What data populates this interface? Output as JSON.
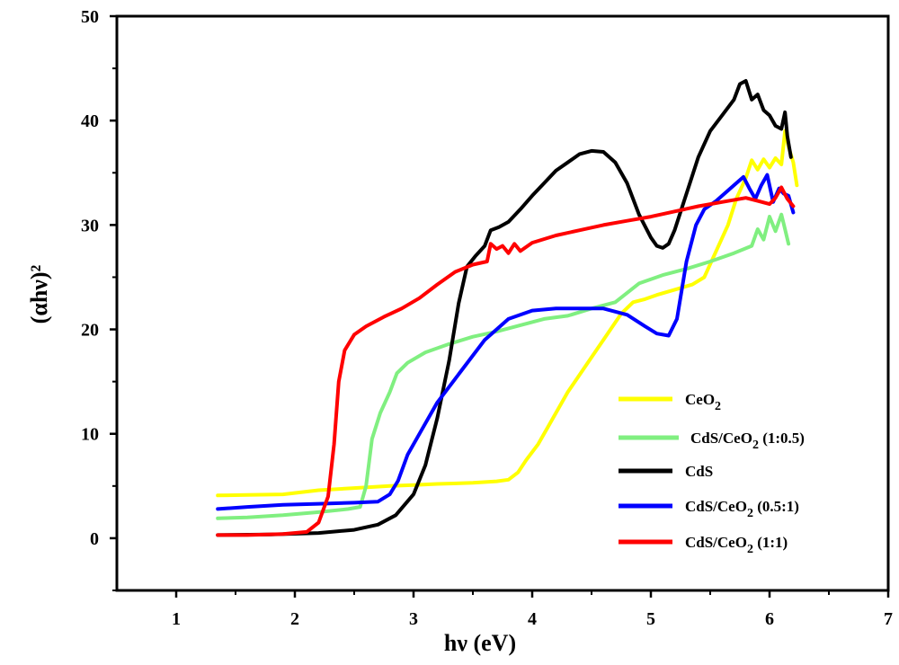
{
  "chart_data": {
    "type": "line",
    "title": "",
    "xlabel": "hν (eV)",
    "ylabel": "(αhν)²",
    "xlim": [
      0.5,
      7
    ],
    "ylim": [
      -5,
      50
    ],
    "xticks": [
      1,
      2,
      3,
      4,
      5,
      6,
      7
    ],
    "yticks": [
      0,
      10,
      20,
      30,
      40,
      50
    ],
    "grid": false,
    "legend_position": "lower-right",
    "series": [
      {
        "name": "CeO2",
        "color": "#ffff00",
        "x": [
          1.35,
          1.6,
          1.9,
          2.2,
          2.5,
          2.8,
          3.0,
          3.2,
          3.5,
          3.7,
          3.8,
          3.88,
          3.95,
          4.05,
          4.15,
          4.3,
          4.45,
          4.6,
          4.75,
          4.85,
          4.95,
          5.05,
          5.2,
          5.35,
          5.45,
          5.55,
          5.65,
          5.72,
          5.8,
          5.85,
          5.9,
          5.95,
          6.0,
          6.05,
          6.1,
          6.13,
          6.16,
          6.2,
          6.23
        ],
        "y": [
          4.1,
          4.15,
          4.2,
          4.6,
          4.8,
          5.0,
          5.1,
          5.2,
          5.3,
          5.45,
          5.6,
          6.3,
          7.5,
          9.0,
          11.0,
          14.0,
          16.5,
          19.0,
          21.5,
          22.6,
          22.9,
          23.3,
          23.8,
          24.3,
          25.0,
          27.5,
          30.0,
          32.5,
          34.5,
          36.2,
          35.3,
          36.3,
          35.5,
          36.4,
          35.8,
          39.0,
          37.5,
          36.0,
          33.8
        ]
      },
      {
        "name": "CdS/CeO2 (1:0.5)",
        "color": "#80ef80",
        "x": [
          1.35,
          1.6,
          1.9,
          2.2,
          2.45,
          2.55,
          2.6,
          2.65,
          2.72,
          2.8,
          2.86,
          2.95,
          3.1,
          3.3,
          3.5,
          3.7,
          3.9,
          4.1,
          4.3,
          4.5,
          4.7,
          4.9,
          5.1,
          5.3,
          5.5,
          5.7,
          5.85,
          5.9,
          5.95,
          6.0,
          6.05,
          6.1,
          6.13,
          6.16
        ],
        "y": [
          1.9,
          2.0,
          2.2,
          2.5,
          2.8,
          3.0,
          5.0,
          9.5,
          12.0,
          14.0,
          15.8,
          16.8,
          17.8,
          18.6,
          19.3,
          19.8,
          20.4,
          21.0,
          21.3,
          22.0,
          22.6,
          24.4,
          25.2,
          25.8,
          26.5,
          27.3,
          28.0,
          29.6,
          28.6,
          30.8,
          29.4,
          31.0,
          29.6,
          28.2
        ]
      },
      {
        "name": "CdS",
        "color": "#000000",
        "x": [
          1.35,
          1.8,
          2.2,
          2.5,
          2.7,
          2.85,
          3.0,
          3.1,
          3.2,
          3.3,
          3.38,
          3.45,
          3.52,
          3.6,
          3.65,
          3.72,
          3.8,
          3.9,
          4.0,
          4.1,
          4.2,
          4.3,
          4.4,
          4.5,
          4.6,
          4.7,
          4.8,
          4.9,
          5.0,
          5.05,
          5.1,
          5.15,
          5.2,
          5.3,
          5.4,
          5.5,
          5.6,
          5.7,
          5.75,
          5.8,
          5.85,
          5.9,
          5.95,
          6.0,
          6.05,
          6.1,
          6.13,
          6.15,
          6.18
        ],
        "y": [
          0.3,
          0.35,
          0.5,
          0.8,
          1.3,
          2.2,
          4.2,
          7.0,
          11.5,
          17.0,
          22.5,
          26.0,
          27.0,
          28.0,
          29.5,
          29.8,
          30.3,
          31.5,
          32.8,
          34.0,
          35.2,
          36.0,
          36.8,
          37.1,
          37.0,
          36.0,
          34.0,
          31.0,
          28.8,
          28.0,
          27.8,
          28.2,
          29.5,
          33.0,
          36.5,
          39.0,
          40.5,
          42.0,
          43.5,
          43.8,
          42.0,
          42.5,
          41.0,
          40.5,
          39.5,
          39.2,
          40.8,
          38.5,
          36.5
        ]
      },
      {
        "name": "CdS/CeO2 (0.5:1)",
        "color": "#0000ff",
        "x": [
          1.35,
          1.6,
          1.9,
          2.2,
          2.5,
          2.7,
          2.8,
          2.87,
          2.95,
          3.05,
          3.2,
          3.4,
          3.6,
          3.8,
          4.0,
          4.2,
          4.4,
          4.6,
          4.8,
          4.95,
          5.05,
          5.15,
          5.22,
          5.3,
          5.38,
          5.45,
          5.55,
          5.65,
          5.72,
          5.78,
          5.83,
          5.88,
          5.93,
          5.98,
          6.03,
          6.08,
          6.12,
          6.16,
          6.2
        ],
        "y": [
          2.8,
          3.0,
          3.2,
          3.3,
          3.4,
          3.5,
          4.2,
          5.5,
          8.0,
          10.0,
          13.0,
          16.0,
          19.0,
          21.0,
          21.8,
          22.0,
          22.0,
          22.0,
          21.4,
          20.3,
          19.6,
          19.4,
          21.0,
          26.5,
          30.0,
          31.5,
          32.3,
          33.3,
          34.0,
          34.6,
          33.5,
          32.5,
          33.8,
          34.8,
          32.2,
          33.5,
          33.0,
          32.8,
          31.2
        ]
      },
      {
        "name": "CdS/CeO2 (1:1)",
        "color": "#ff0000",
        "x": [
          1.35,
          1.6,
          1.9,
          2.1,
          2.2,
          2.28,
          2.33,
          2.37,
          2.42,
          2.5,
          2.6,
          2.75,
          2.9,
          3.05,
          3.2,
          3.35,
          3.5,
          3.62,
          3.65,
          3.7,
          3.75,
          3.8,
          3.85,
          3.9,
          4.0,
          4.2,
          4.4,
          4.6,
          4.8,
          5.0,
          5.2,
          5.4,
          5.6,
          5.8,
          5.9,
          6.0,
          6.05,
          6.1,
          6.15,
          6.2
        ],
        "y": [
          0.3,
          0.3,
          0.4,
          0.6,
          1.5,
          4.0,
          9.0,
          15.0,
          18.0,
          19.5,
          20.3,
          21.2,
          22.0,
          23.0,
          24.3,
          25.5,
          26.2,
          26.5,
          28.2,
          27.7,
          28.0,
          27.3,
          28.2,
          27.5,
          28.3,
          29.0,
          29.5,
          30.0,
          30.4,
          30.8,
          31.3,
          31.8,
          32.2,
          32.6,
          32.3,
          32.0,
          32.6,
          33.6,
          32.5,
          31.8
        ]
      }
    ],
    "legend": [
      {
        "series": 0,
        "base": "CeO",
        "sub": "2",
        "tail": ""
      },
      {
        "series": 1,
        "base": "CdS/CeO",
        "sub": "2",
        "tail": " (1:0.5)"
      },
      {
        "series": 2,
        "base": "CdS",
        "sub": "",
        "tail": ""
      },
      {
        "series": 3,
        "base": "CdS/CeO",
        "sub": "2",
        "tail": " (0.5:1)"
      },
      {
        "series": 4,
        "base": "CdS/CeO",
        "sub": "2",
        "tail": " (1:1)"
      }
    ]
  }
}
